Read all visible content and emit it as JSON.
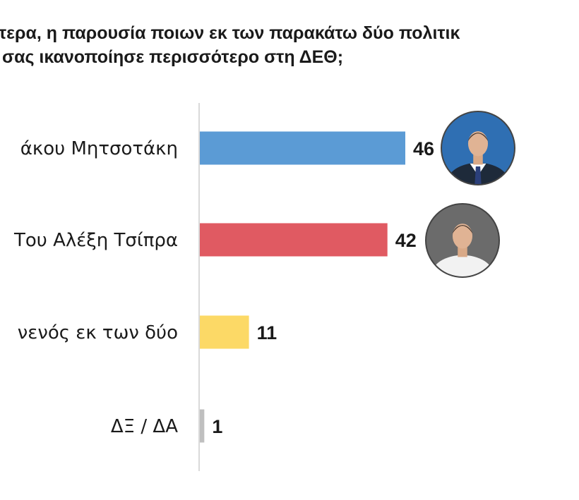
{
  "title": {
    "line1": "τερα, η παρουσία ποιων εκ των παρακάτω δύο πολιτικ",
    "line2": "σας ικανοποίησε περισσότερο στη ΔΕΘ;"
  },
  "chart_data": {
    "type": "bar",
    "orientation": "horizontal",
    "categories": [
      "άκου Μητσοτάκη",
      "Του Αλέξη Τσίπρα",
      "νενός εκ των δύο",
      "ΔΞ / ΔΑ"
    ],
    "values": [
      46,
      42,
      11,
      1
    ],
    "colors": [
      "#5b9bd5",
      "#e05a62",
      "#fcd966",
      "#bfbfbf"
    ],
    "value_labels": [
      "46",
      "42",
      "11",
      "1"
    ],
    "xlim": [
      0,
      100
    ],
    "axis_color": "#d9d9d9",
    "grid": false,
    "legend": "none"
  },
  "portraits": [
    {
      "name": "mitsotakis-portrait",
      "bg": "#2f6fb3",
      "shirt": "#ffffff",
      "suit": "#1e2a3a",
      "tie": "#2b3f7a"
    },
    {
      "name": "tsipras-portrait",
      "bg": "#6b6b6b",
      "shirt": "#f2f2f2",
      "suit": "#f2f2f2",
      "tie": ""
    }
  ]
}
